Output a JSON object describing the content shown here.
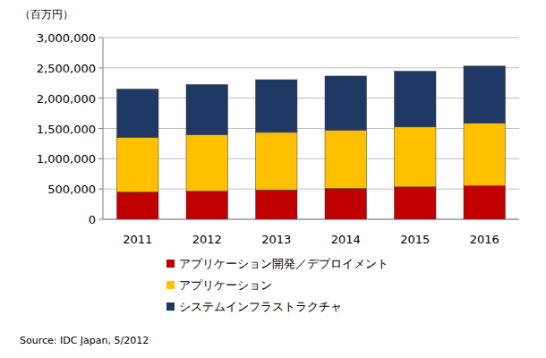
{
  "chart_data": {
    "type": "bar",
    "stacked": true,
    "grid": true,
    "legend": "bottom",
    "y_label": "（百万円）",
    "source": "Source: IDC Japan, 5/2012",
    "categories": [
      "2011",
      "2012",
      "2013",
      "2014",
      "2015",
      "2016"
    ],
    "ylim": [
      0,
      3000000
    ],
    "yticks": [
      0,
      {
        "value": 500000,
        "label": "500,000"
      },
      {
        "value": 1000000,
        "label": "1,000,000"
      },
      {
        "value": 1500000,
        "label": "1,500,000"
      },
      {
        "value": 2000000,
        "label": "2,000,000"
      },
      {
        "value": 2500000,
        "label": "2,500,000"
      },
      {
        "value": 3000000,
        "label": "3,000,000"
      }
    ],
    "series": [
      {
        "name": "アプリケーション開発／デプロイメント",
        "color": "#c00000",
        "values": [
          450000,
          465000,
          485000,
          510000,
          535000,
          555000
        ]
      },
      {
        "name": "アプリケーション",
        "color": "#ffc000",
        "values": [
          900000,
          930000,
          950000,
          960000,
          990000,
          1030000
        ]
      },
      {
        "name": "システムインフラストラクチャ",
        "color": "#1f3864",
        "values": [
          800000,
          830000,
          870000,
          895000,
          920000,
          945000
        ]
      }
    ]
  }
}
